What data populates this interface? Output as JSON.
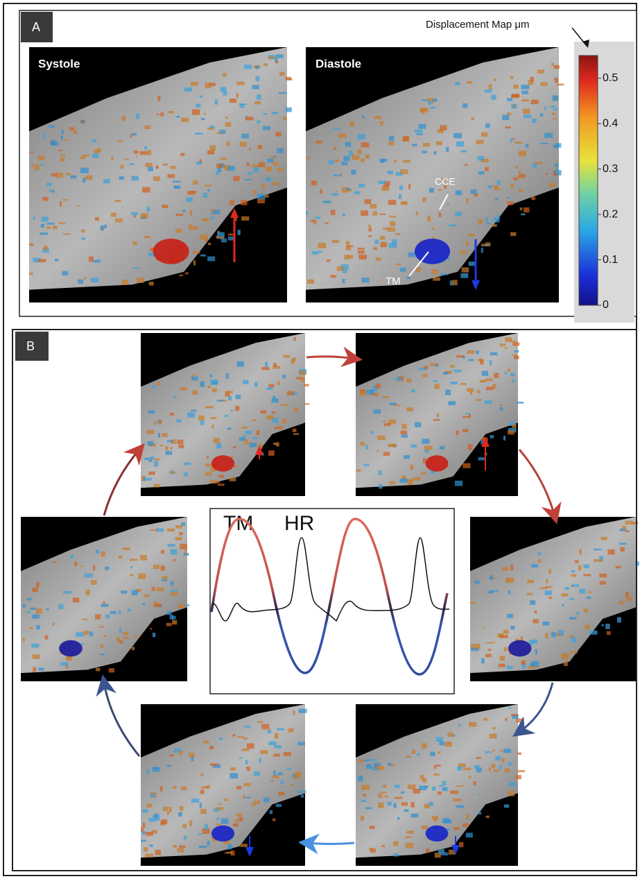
{
  "panel_a": {
    "label": "A",
    "legend_title": "Displacement Map μm",
    "images": [
      {
        "label": "Systole"
      },
      {
        "label": "Diastole"
      }
    ],
    "annotations": [
      "CCE",
      "TM"
    ],
    "colorbar": {
      "lim": [
        0,
        0.55
      ],
      "ticks": [
        0,
        0.1,
        0.2,
        0.3,
        0.4,
        0.5
      ]
    }
  },
  "panel_b": {
    "label": "B",
    "plot_labels": [
      "TM",
      "HR"
    ]
  }
}
